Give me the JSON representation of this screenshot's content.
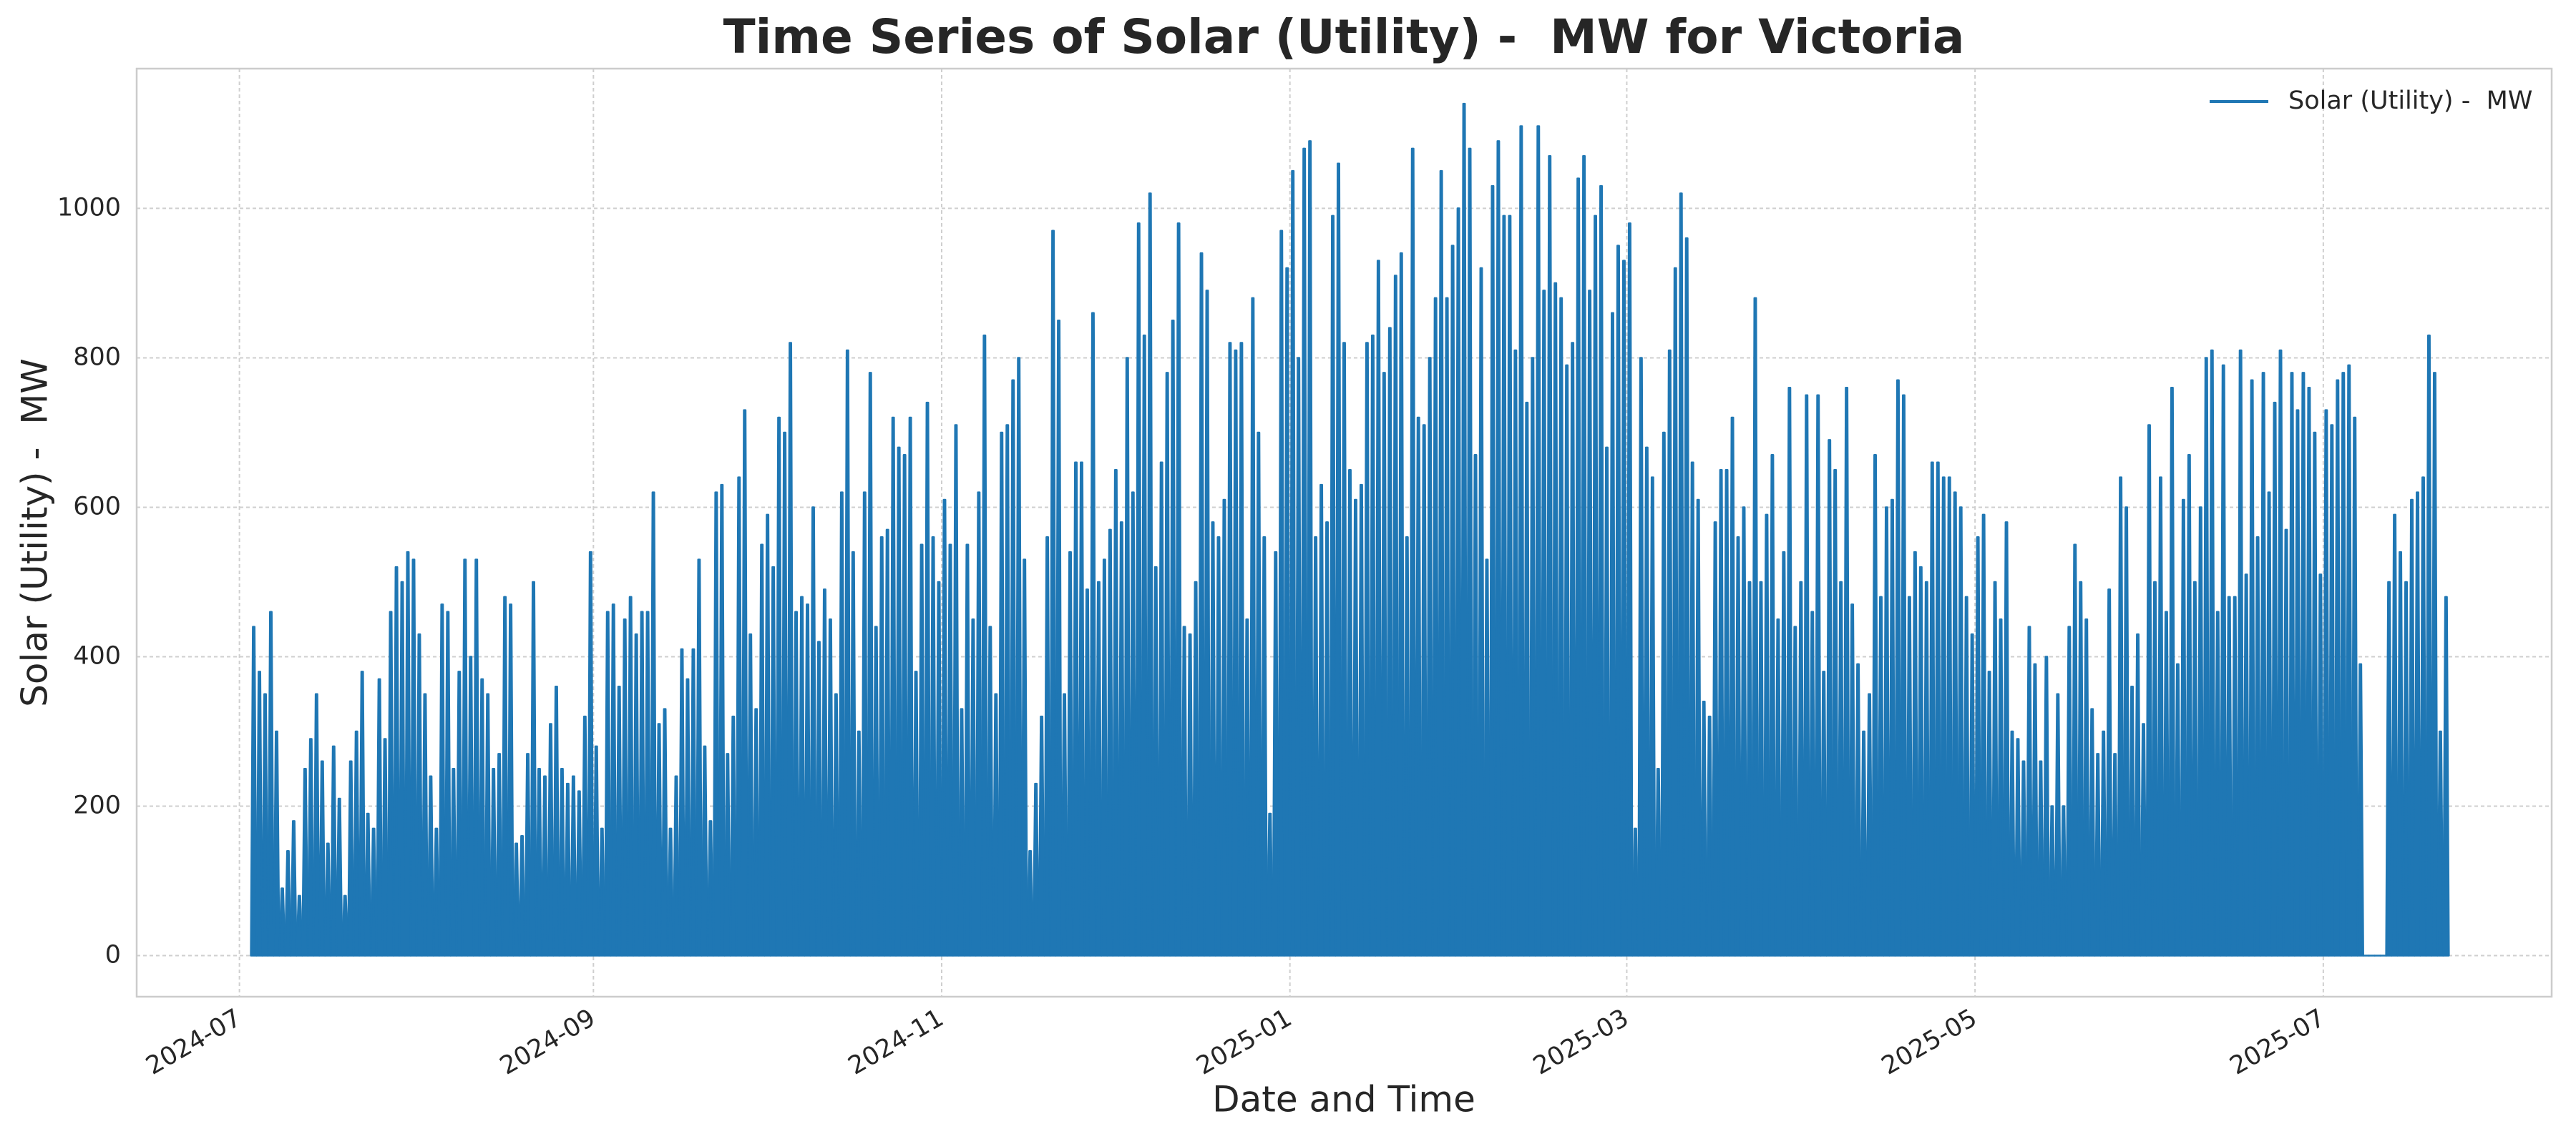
{
  "chart_data": {
    "type": "spike-line",
    "title": "Time Series of Solar (Utility) -  MW for Victoria",
    "x_label": "Date and Time",
    "y_label": "Solar (Utility) -  MW",
    "xlim": [
      "2024-06-13",
      "2025-08-10"
    ],
    "xticks": [
      "2024-07",
      "2024-09",
      "2024-11",
      "2025-01",
      "2025-03",
      "2025-05",
      "2025-07"
    ],
    "ylim": [
      -55,
      1187
    ],
    "yticks": [
      0,
      200,
      400,
      600,
      800,
      1000
    ],
    "grid": true,
    "legend": "upper right",
    "x": [
      "2024-07-03",
      "2024-07-04",
      "2024-07-05",
      "2024-07-06",
      "2024-07-07",
      "2024-07-08",
      "2024-07-09",
      "2024-07-10",
      "2024-07-11",
      "2024-07-12",
      "2024-07-13",
      "2024-07-14",
      "2024-07-15",
      "2024-07-16",
      "2024-07-17",
      "2024-07-18",
      "2024-07-19",
      "2024-07-20",
      "2024-07-21",
      "2024-07-22",
      "2024-07-23",
      "2024-07-24",
      "2024-07-25",
      "2024-07-26",
      "2024-07-27",
      "2024-07-28",
      "2024-07-29",
      "2024-07-30",
      "2024-07-31",
      "2024-08-01",
      "2024-08-02",
      "2024-08-03",
      "2024-08-04",
      "2024-08-05",
      "2024-08-06",
      "2024-08-07",
      "2024-08-08",
      "2024-08-09",
      "2024-08-10",
      "2024-08-11",
      "2024-08-12",
      "2024-08-13",
      "2024-08-14",
      "2024-08-15",
      "2024-08-16",
      "2024-08-17",
      "2024-08-18",
      "2024-08-19",
      "2024-08-20",
      "2024-08-21",
      "2024-08-22",
      "2024-08-23",
      "2024-08-24",
      "2024-08-25",
      "2024-08-26",
      "2024-08-27",
      "2024-08-28",
      "2024-08-29",
      "2024-08-30",
      "2024-08-31",
      "2024-09-01",
      "2024-09-02",
      "2024-09-03",
      "2024-09-04",
      "2024-09-05",
      "2024-09-06",
      "2024-09-07",
      "2024-09-08",
      "2024-09-09",
      "2024-09-10",
      "2024-09-11",
      "2024-09-12",
      "2024-09-13",
      "2024-09-14",
      "2024-09-15",
      "2024-09-16",
      "2024-09-17",
      "2024-09-18",
      "2024-09-19",
      "2024-09-20",
      "2024-09-21",
      "2024-09-22",
      "2024-09-23",
      "2024-09-24",
      "2024-09-25",
      "2024-09-26",
      "2024-09-27",
      "2024-09-28",
      "2024-09-29",
      "2024-09-30",
      "2024-10-01",
      "2024-10-02",
      "2024-10-03",
      "2024-10-04",
      "2024-10-05",
      "2024-10-06",
      "2024-10-07",
      "2024-10-08",
      "2024-10-09",
      "2024-10-10",
      "2024-10-11",
      "2024-10-12",
      "2024-10-13",
      "2024-10-14",
      "2024-10-15",
      "2024-10-16",
      "2024-10-17",
      "2024-10-18",
      "2024-10-19",
      "2024-10-20",
      "2024-10-21",
      "2024-10-22",
      "2024-10-23",
      "2024-10-24",
      "2024-10-25",
      "2024-10-26",
      "2024-10-27",
      "2024-10-28",
      "2024-10-29",
      "2024-10-30",
      "2024-10-31",
      "2024-11-01",
      "2024-11-02",
      "2024-11-03",
      "2024-11-04",
      "2024-11-05",
      "2024-11-06",
      "2024-11-07",
      "2024-11-08",
      "2024-11-09",
      "2024-11-10",
      "2024-11-11",
      "2024-11-12",
      "2024-11-13",
      "2024-11-14",
      "2024-11-15",
      "2024-11-16",
      "2024-11-17",
      "2024-11-18",
      "2024-11-19",
      "2024-11-20",
      "2024-11-21",
      "2024-11-22",
      "2024-11-23",
      "2024-11-24",
      "2024-11-25",
      "2024-11-26",
      "2024-11-27",
      "2024-11-28",
      "2024-11-29",
      "2024-11-30",
      "2024-12-01",
      "2024-12-02",
      "2024-12-03",
      "2024-12-04",
      "2024-12-05",
      "2024-12-06",
      "2024-12-07",
      "2024-12-08",
      "2024-12-09",
      "2024-12-10",
      "2024-12-11",
      "2024-12-12",
      "2024-12-13",
      "2024-12-14",
      "2024-12-15",
      "2024-12-16",
      "2024-12-17",
      "2024-12-18",
      "2024-12-19",
      "2024-12-20",
      "2024-12-21",
      "2024-12-22",
      "2024-12-23",
      "2024-12-24",
      "2024-12-25",
      "2024-12-26",
      "2024-12-27",
      "2024-12-28",
      "2024-12-29",
      "2024-12-30",
      "2024-12-31",
      "2025-01-01",
      "2025-01-02",
      "2025-01-03",
      "2025-01-04",
      "2025-01-05",
      "2025-01-06",
      "2025-01-07",
      "2025-01-08",
      "2025-01-09",
      "2025-01-10",
      "2025-01-11",
      "2025-01-12",
      "2025-01-13",
      "2025-01-14",
      "2025-01-15",
      "2025-01-16",
      "2025-01-17",
      "2025-01-18",
      "2025-01-19",
      "2025-01-20",
      "2025-01-21",
      "2025-01-22",
      "2025-01-23",
      "2025-01-24",
      "2025-01-25",
      "2025-01-26",
      "2025-01-27",
      "2025-01-28",
      "2025-01-29",
      "2025-01-30",
      "2025-01-31",
      "2025-02-01",
      "2025-02-02",
      "2025-02-03",
      "2025-02-04",
      "2025-02-05",
      "2025-02-06",
      "2025-02-07",
      "2025-02-08",
      "2025-02-09",
      "2025-02-10",
      "2025-02-11",
      "2025-02-12",
      "2025-02-13",
      "2025-02-14",
      "2025-02-15",
      "2025-02-16",
      "2025-02-17",
      "2025-02-18",
      "2025-02-19",
      "2025-02-20",
      "2025-02-21",
      "2025-02-22",
      "2025-02-23",
      "2025-02-24",
      "2025-02-25",
      "2025-02-26",
      "2025-02-27",
      "2025-02-28",
      "2025-03-01",
      "2025-03-02",
      "2025-03-03",
      "2025-03-04",
      "2025-03-05",
      "2025-03-06",
      "2025-03-07",
      "2025-03-08",
      "2025-03-09",
      "2025-03-10",
      "2025-03-11",
      "2025-03-12",
      "2025-03-13",
      "2025-03-14",
      "2025-03-15",
      "2025-03-16",
      "2025-03-17",
      "2025-03-18",
      "2025-03-19",
      "2025-03-20",
      "2025-03-21",
      "2025-03-22",
      "2025-03-23",
      "2025-03-24",
      "2025-03-25",
      "2025-03-26",
      "2025-03-27",
      "2025-03-28",
      "2025-03-29",
      "2025-03-30",
      "2025-03-31",
      "2025-04-01",
      "2025-04-02",
      "2025-04-03",
      "2025-04-04",
      "2025-04-05",
      "2025-04-06",
      "2025-04-07",
      "2025-04-08",
      "2025-04-09",
      "2025-04-10",
      "2025-04-11",
      "2025-04-12",
      "2025-04-13",
      "2025-04-14",
      "2025-04-15",
      "2025-04-16",
      "2025-04-17",
      "2025-04-18",
      "2025-04-19",
      "2025-04-20",
      "2025-04-21",
      "2025-04-22",
      "2025-04-23",
      "2025-04-24",
      "2025-04-25",
      "2025-04-26",
      "2025-04-27",
      "2025-04-28",
      "2025-04-29",
      "2025-04-30",
      "2025-05-01",
      "2025-05-02",
      "2025-05-03",
      "2025-05-04",
      "2025-05-05",
      "2025-05-06",
      "2025-05-07",
      "2025-05-08",
      "2025-05-09",
      "2025-05-10",
      "2025-05-11",
      "2025-05-12",
      "2025-05-13",
      "2025-05-14",
      "2025-05-15",
      "2025-05-16",
      "2025-05-17",
      "2025-05-18",
      "2025-05-19",
      "2025-05-20",
      "2025-05-21",
      "2025-05-22",
      "2025-05-23",
      "2025-05-24",
      "2025-05-25",
      "2025-05-26",
      "2025-05-27",
      "2025-05-28",
      "2025-05-29",
      "2025-05-30",
      "2025-05-31",
      "2025-06-01",
      "2025-06-02",
      "2025-06-03",
      "2025-06-04",
      "2025-06-05",
      "2025-06-06",
      "2025-06-07",
      "2025-06-08",
      "2025-06-09",
      "2025-06-10",
      "2025-06-11",
      "2025-06-12",
      "2025-06-13",
      "2025-06-14",
      "2025-06-15",
      "2025-06-16",
      "2025-06-17",
      "2025-06-18",
      "2025-06-19",
      "2025-06-20",
      "2025-06-21",
      "2025-06-22",
      "2025-06-23",
      "2025-06-24",
      "2025-06-25",
      "2025-06-26",
      "2025-06-27",
      "2025-06-28",
      "2025-06-29",
      "2025-06-30",
      "2025-07-01",
      "2025-07-02",
      "2025-07-03",
      "2025-07-04",
      "2025-07-05",
      "2025-07-06",
      "2025-07-07",
      "2025-07-08",
      "2025-07-09",
      "2025-07-10",
      "2025-07-11",
      "2025-07-12",
      "2025-07-13",
      "2025-07-14",
      "2025-07-15",
      "2025-07-16",
      "2025-07-17",
      "2025-07-18",
      "2025-07-19",
      "2025-07-20",
      "2025-07-21",
      "2025-07-22"
    ],
    "series": [
      {
        "name": "Solar (Utility) -  MW",
        "color": "#1f77b4",
        "values": [
          440,
          380,
          350,
          460,
          300,
          90,
          140,
          180,
          80,
          250,
          290,
          350,
          260,
          150,
          280,
          210,
          80,
          260,
          300,
          380,
          190,
          170,
          370,
          290,
          460,
          520,
          500,
          540,
          530,
          430,
          350,
          240,
          170,
          470,
          460,
          250,
          380,
          530,
          400,
          530,
          370,
          350,
          250,
          270,
          480,
          470,
          150,
          160,
          270,
          500,
          250,
          240,
          310,
          360,
          250,
          230,
          240,
          220,
          320,
          540,
          280,
          170,
          460,
          470,
          360,
          450,
          480,
          430,
          460,
          460,
          620,
          310,
          330,
          170,
          240,
          410,
          370,
          410,
          530,
          280,
          180,
          620,
          630,
          270,
          320,
          640,
          730,
          430,
          330,
          550,
          590,
          520,
          720,
          700,
          820,
          460,
          480,
          470,
          600,
          420,
          490,
          450,
          350,
          620,
          810,
          540,
          300,
          620,
          780,
          440,
          560,
          570,
          720,
          680,
          670,
          720,
          380,
          550,
          740,
          560,
          500,
          610,
          550,
          710,
          330,
          550,
          450,
          620,
          830,
          440,
          350,
          700,
          710,
          770,
          800,
          530,
          140,
          230,
          320,
          560,
          970,
          850,
          350,
          540,
          660,
          660,
          490,
          860,
          500,
          530,
          570,
          650,
          580,
          800,
          620,
          980,
          830,
          1020,
          520,
          660,
          780,
          850,
          980,
          440,
          430,
          500,
          940,
          890,
          580,
          560,
          610,
          820,
          810,
          820,
          450,
          880,
          700,
          560,
          190,
          540,
          970,
          920,
          1050,
          800,
          1080,
          1090,
          560,
          630,
          580,
          990,
          1060,
          820,
          650,
          610,
          630,
          820,
          830,
          930,
          780,
          840,
          910,
          940,
          560,
          1080,
          720,
          710,
          800,
          880,
          1050,
          880,
          950,
          1000,
          1140,
          1080,
          670,
          920,
          530,
          1030,
          1090,
          990,
          990,
          810,
          1110,
          740,
          800,
          1110,
          890,
          1070,
          900,
          880,
          790,
          820,
          1040,
          1070,
          890,
          990,
          1030,
          680,
          860,
          950,
          930,
          980,
          170,
          800,
          680,
          640,
          250,
          700,
          810,
          920,
          1020,
          960,
          660,
          610,
          340,
          320,
          580,
          650,
          650,
          720,
          560,
          600,
          500,
          880,
          500,
          590,
          670,
          450,
          540,
          760,
          440,
          500,
          750,
          460,
          750,
          380,
          690,
          650,
          500,
          760,
          470,
          390,
          300,
          350,
          670,
          480,
          600,
          610,
          770,
          750,
          480,
          540,
          520,
          500,
          660,
          660,
          640,
          640,
          620,
          600,
          480,
          430,
          560,
          590,
          380,
          500,
          450,
          580,
          300,
          290,
          260,
          440,
          390,
          260,
          400,
          200,
          350,
          200,
          440,
          550,
          500,
          450,
          330,
          270,
          300,
          490,
          270,
          640,
          600,
          360,
          430,
          310,
          710,
          500,
          640,
          460,
          760,
          390,
          610,
          670,
          500,
          600,
          800,
          810,
          460,
          790,
          480,
          480,
          810,
          510,
          770,
          560,
          780,
          620,
          740,
          810,
          570,
          780,
          730,
          780,
          760,
          700,
          510,
          730,
          710,
          770,
          780,
          790,
          720,
          390,
          0,
          0,
          0,
          0,
          500,
          590,
          540,
          500,
          610,
          620,
          640,
          830,
          780,
          300,
          480
        ]
      }
    ]
  }
}
